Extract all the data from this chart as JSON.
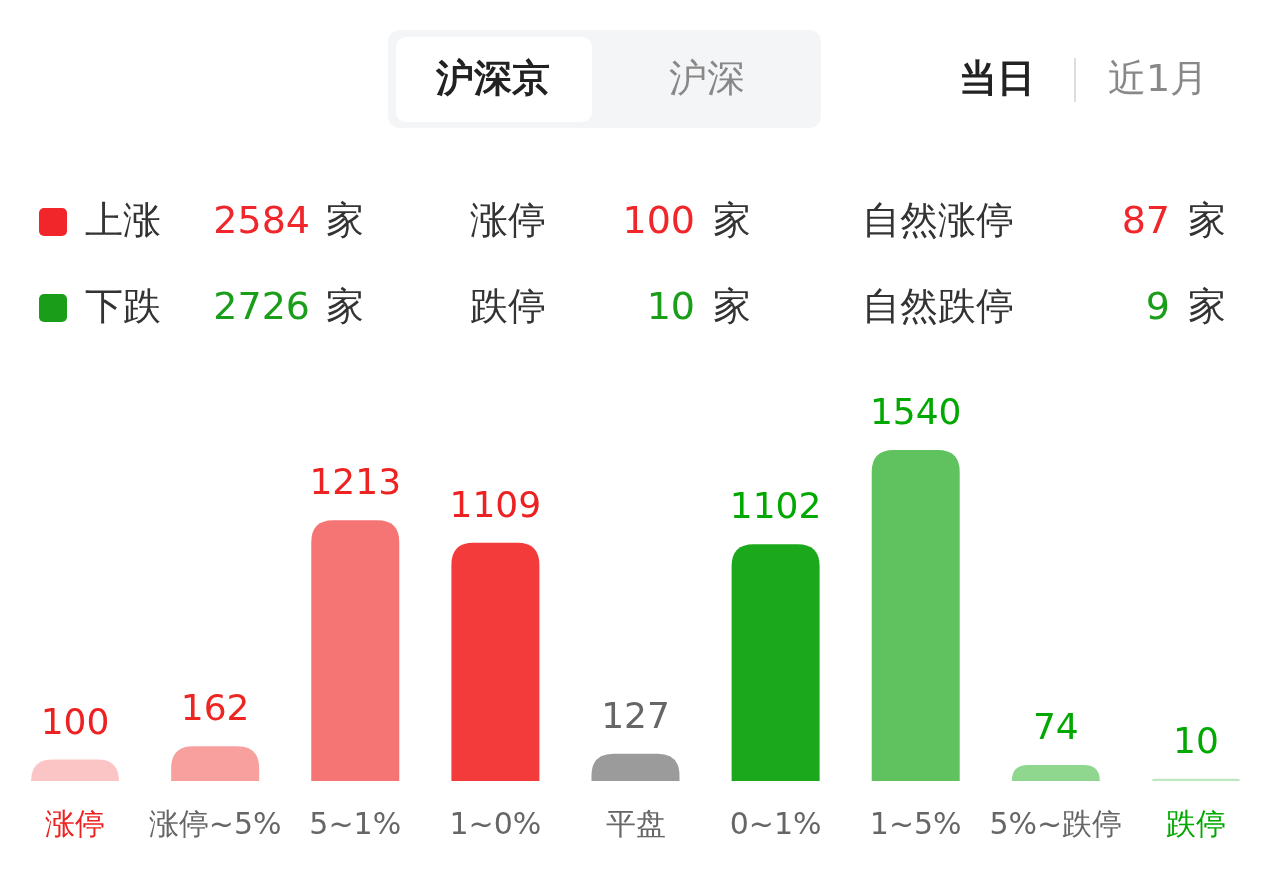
{
  "chart_data": [
    {
      "type": "other",
      "annotations": [
        "沪深京",
        "沪深",
        "当日",
        "近1月",
        "上涨",
        "2584",
        "家",
        "涨停",
        "100",
        "家",
        "自然涨停",
        "87",
        "家",
        "下跌",
        "2726",
        "家",
        "跌停",
        "10",
        "家",
        "自然跌停",
        "9",
        "家"
      ]
    },
    {
      "type": "bar",
      "categories": [
        "涨停",
        "涨停~5%",
        "5~1%",
        "1~0%",
        "平盘",
        "0~1%",
        "1~5%",
        "5%~跌停",
        "跌停"
      ],
      "values": [
        100,
        162,
        1213,
        1109,
        127,
        1102,
        1540,
        74,
        10
      ],
      "colors": [
        "#fcc5c5",
        "#f8a09e",
        "#f47574",
        "#f33b3b",
        "#9b9b9b",
        "#1ca81c",
        "#5fc25f",
        "#8fd68f",
        "#bfe6bf"
      ],
      "data_labels": true
    }
  ]
}
